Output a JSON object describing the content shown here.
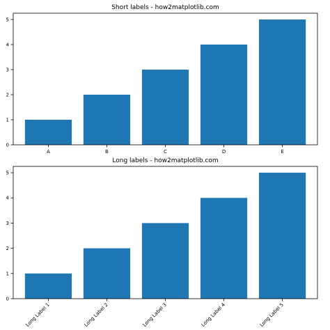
{
  "chart_data": [
    {
      "type": "bar",
      "title": "Short labels - how2matplotlib.com",
      "categories": [
        "A",
        "B",
        "C",
        "D",
        "E"
      ],
      "values": [
        1,
        2,
        3,
        4,
        5
      ],
      "yticks": [
        "0",
        "1",
        "2",
        "3",
        "4",
        "5"
      ],
      "ylim": [
        0,
        5.25
      ],
      "xlabel": "",
      "ylabel": "",
      "grid": false,
      "label_rotation": 0,
      "color": "#1f77b4"
    },
    {
      "type": "bar",
      "title": "Long labels - how2matplotlib.com",
      "categories": [
        "Long Label 1",
        "Long Label 2",
        "Long Label 3",
        "Long Label 4",
        "Long Label 5"
      ],
      "values": [
        1,
        2,
        3,
        4,
        5
      ],
      "yticks": [
        "0",
        "1",
        "2",
        "3",
        "4",
        "5"
      ],
      "ylim": [
        0,
        5.25
      ],
      "xlabel": "",
      "ylabel": "",
      "grid": false,
      "label_rotation": 45,
      "color": "#1f77b4"
    }
  ]
}
